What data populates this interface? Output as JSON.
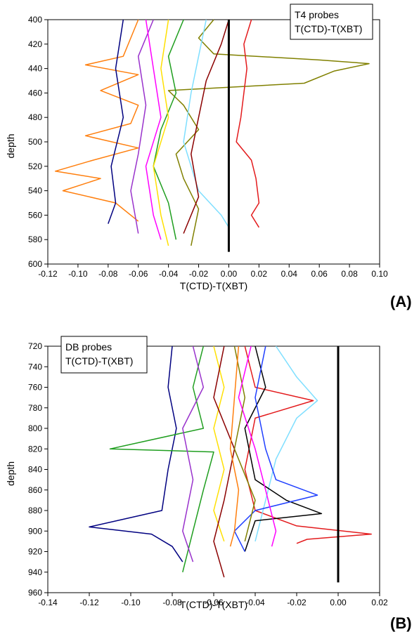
{
  "chart_data": [
    {
      "type": "line",
      "panel_label": "(A)",
      "legend": [
        "T4 probes",
        "T(CTD)-T(XBT)"
      ],
      "legend_position": "top-right",
      "xlabel": "T(CTD)-T(XBT)",
      "ylabel": "depth",
      "xlim": [
        -0.12,
        0.1
      ],
      "ylim": [
        600,
        400
      ],
      "x_ticks": [
        "-0.12",
        "-0.10",
        "-0.08",
        "-0.06",
        "-0.04",
        "-0.02",
        "0.00",
        "0.02",
        "0.04",
        "0.06",
        "0.08",
        "0.10"
      ],
      "y_ticks": [
        "400",
        "420",
        "440",
        "460",
        "480",
        "500",
        "520",
        "540",
        "560",
        "580",
        "600"
      ],
      "reference_line": {
        "x": 0.0,
        "depth_range": [
          400,
          590
        ],
        "color": "#000000"
      },
      "series": [
        {
          "color": "#ff7f0e",
          "points": [
            [
              -0.06,
              400
            ],
            [
              -0.065,
              415
            ],
            [
              -0.07,
              430
            ],
            [
              -0.095,
              437
            ],
            [
              -0.06,
              445
            ],
            [
              -0.085,
              458
            ],
            [
              -0.06,
              470
            ],
            [
              -0.065,
              485
            ],
            [
              -0.095,
              495
            ],
            [
              -0.06,
              505
            ],
            [
              -0.09,
              515
            ],
            [
              -0.115,
              524
            ],
            [
              -0.085,
              530
            ],
            [
              -0.11,
              540
            ],
            [
              -0.075,
              550
            ],
            [
              -0.06,
              565
            ]
          ]
        },
        {
          "color": "#808000",
          "points": [
            [
              -0.01,
              400
            ],
            [
              -0.02,
              415
            ],
            [
              -0.01,
              428
            ],
            [
              0.06,
              433
            ],
            [
              0.093,
              436
            ],
            [
              0.07,
              442
            ],
            [
              0.05,
              452
            ],
            [
              -0.04,
              458
            ],
            [
              -0.03,
              470
            ],
            [
              -0.02,
              490
            ],
            [
              -0.035,
              510
            ],
            [
              -0.03,
              530
            ],
            [
              -0.02,
              555
            ],
            [
              -0.025,
              585
            ]
          ]
        },
        {
          "color": "#e31a1c",
          "points": [
            [
              0.015,
              400
            ],
            [
              0.01,
              420
            ],
            [
              0.012,
              440
            ],
            [
              0.01,
              460
            ],
            [
              0.008,
              480
            ],
            [
              0.005,
              500
            ],
            [
              0.015,
              515
            ],
            [
              0.018,
              530
            ],
            [
              0.02,
              550
            ],
            [
              0.015,
              560
            ],
            [
              0.02,
              570
            ]
          ]
        },
        {
          "color": "#000080",
          "points": [
            [
              -0.07,
              400
            ],
            [
              -0.075,
              440
            ],
            [
              -0.07,
              480
            ],
            [
              -0.078,
              520
            ],
            [
              -0.075,
              550
            ],
            [
              -0.08,
              567
            ]
          ]
        },
        {
          "color": "#1f9e1f",
          "points": [
            [
              -0.03,
              400
            ],
            [
              -0.04,
              430
            ],
            [
              -0.035,
              460
            ],
            [
              -0.045,
              490
            ],
            [
              -0.05,
              520
            ],
            [
              -0.04,
              550
            ],
            [
              -0.035,
              580
            ]
          ]
        },
        {
          "color": "#7fdfff",
          "points": [
            [
              -0.015,
              400
            ],
            [
              -0.02,
              430
            ],
            [
              -0.025,
              460
            ],
            [
              -0.03,
              500
            ],
            [
              -0.02,
              540
            ],
            [
              -0.005,
              560
            ],
            [
              0.0,
              570
            ]
          ]
        },
        {
          "color": "#8b0000",
          "points": [
            [
              0.0,
              400
            ],
            [
              -0.005,
              420
            ],
            [
              -0.015,
              450
            ],
            [
              -0.02,
              480
            ],
            [
              -0.025,
              510
            ],
            [
              -0.02,
              545
            ],
            [
              -0.03,
              575
            ]
          ]
        },
        {
          "color": "#9932cc",
          "points": [
            [
              -0.05,
              400
            ],
            [
              -0.06,
              430
            ],
            [
              -0.055,
              470
            ],
            [
              -0.06,
              510
            ],
            [
              -0.065,
              540
            ],
            [
              -0.06,
              575
            ]
          ]
        },
        {
          "color": "#ffe000",
          "points": [
            [
              -0.04,
              400
            ],
            [
              -0.045,
              440
            ],
            [
              -0.04,
              480
            ],
            [
              -0.05,
              520
            ],
            [
              -0.045,
              560
            ],
            [
              -0.04,
              585
            ]
          ]
        },
        {
          "color": "#ff00ff",
          "points": [
            [
              -0.055,
              400
            ],
            [
              -0.05,
              440
            ],
            [
              -0.045,
              480
            ],
            [
              -0.055,
              520
            ],
            [
              -0.05,
              560
            ],
            [
              -0.045,
              580
            ]
          ]
        }
      ]
    },
    {
      "type": "line",
      "panel_label": "(B)",
      "legend": [
        "DB probes",
        "T(CTD)-T(XBT)"
      ],
      "legend_position": "top-left",
      "xlabel": "T(CTD)-T(XBT)",
      "ylabel": "depth",
      "xlim": [
        -0.14,
        0.02
      ],
      "ylim": [
        960,
        720
      ],
      "x_ticks": [
        "-0.14",
        "-0.12",
        "-0.10",
        "-0.08",
        "-0.06",
        "-0.04",
        "-0.02",
        "0.00",
        "0.02"
      ],
      "y_ticks": [
        "720",
        "740",
        "760",
        "780",
        "800",
        "820",
        "840",
        "860",
        "880",
        "900",
        "920",
        "940",
        "960"
      ],
      "reference_line": {
        "x": 0.0,
        "depth_range": [
          720,
          950
        ],
        "color": "#000000"
      },
      "series": [
        {
          "color": "#000080",
          "points": [
            [
              -0.08,
              720
            ],
            [
              -0.082,
              760
            ],
            [
              -0.078,
              800
            ],
            [
              -0.082,
              840
            ],
            [
              -0.085,
              880
            ],
            [
              -0.12,
              896
            ],
            [
              -0.09,
              903
            ],
            [
              -0.08,
              915
            ],
            [
              -0.075,
              930
            ]
          ]
        },
        {
          "color": "#1f9e1f",
          "points": [
            [
              -0.065,
              720
            ],
            [
              -0.07,
              760
            ],
            [
              -0.065,
              800
            ],
            [
              -0.11,
              820
            ],
            [
              -0.06,
              823
            ],
            [
              -0.065,
              860
            ],
            [
              -0.07,
              900
            ],
            [
              -0.075,
              940
            ]
          ]
        },
        {
          "color": "#e31a1c",
          "points": [
            [
              -0.045,
              720
            ],
            [
              -0.04,
              760
            ],
            [
              -0.012,
              773
            ],
            [
              -0.04,
              790
            ],
            [
              -0.045,
              840
            ],
            [
              -0.04,
              880
            ],
            [
              -0.02,
              895
            ],
            [
              0.016,
              903
            ],
            [
              -0.015,
              908
            ],
            [
              -0.02,
              912
            ]
          ]
        },
        {
          "color": "#7fdfff",
          "points": [
            [
              -0.03,
              720
            ],
            [
              -0.02,
              750
            ],
            [
              -0.01,
              773
            ],
            [
              -0.02,
              790
            ],
            [
              -0.03,
              830
            ],
            [
              -0.035,
              870
            ],
            [
              -0.04,
              910
            ]
          ]
        },
        {
          "color": "#000000",
          "points": [
            [
              -0.04,
              720
            ],
            [
              -0.035,
              760
            ],
            [
              -0.045,
              800
            ],
            [
              -0.04,
              850
            ],
            [
              -0.025,
              870
            ],
            [
              -0.008,
              883
            ],
            [
              -0.04,
              890
            ],
            [
              -0.045,
              920
            ]
          ]
        },
        {
          "color": "#1f3fff",
          "points": [
            [
              -0.035,
              720
            ],
            [
              -0.04,
              770
            ],
            [
              -0.035,
              820
            ],
            [
              -0.03,
              850
            ],
            [
              -0.01,
              865
            ],
            [
              -0.04,
              880
            ],
            [
              -0.05,
              900
            ],
            [
              -0.045,
              920
            ]
          ]
        },
        {
          "color": "#9932cc",
          "points": [
            [
              -0.07,
              720
            ],
            [
              -0.065,
              760
            ],
            [
              -0.075,
              800
            ],
            [
              -0.07,
              850
            ],
            [
              -0.075,
              900
            ],
            [
              -0.07,
              930
            ]
          ]
        },
        {
          "color": "#ffe000",
          "points": [
            [
              -0.06,
              720
            ],
            [
              -0.055,
              760
            ],
            [
              -0.06,
              800
            ],
            [
              -0.055,
              840
            ],
            [
              -0.06,
              880
            ],
            [
              -0.055,
              910
            ]
          ]
        },
        {
          "color": "#8b0000",
          "points": [
            [
              -0.055,
              720
            ],
            [
              -0.06,
              770
            ],
            [
              -0.05,
              820
            ],
            [
              -0.055,
              870
            ],
            [
              -0.06,
              910
            ],
            [
              -0.055,
              945
            ]
          ]
        },
        {
          "color": "#808000",
          "points": [
            [
              -0.05,
              720
            ],
            [
              -0.045,
              770
            ],
            [
              -0.05,
              820
            ],
            [
              -0.04,
              870
            ],
            [
              -0.045,
              910
            ]
          ]
        },
        {
          "color": "#ff00ff",
          "points": [
            [
              -0.042,
              720
            ],
            [
              -0.048,
              770
            ],
            [
              -0.04,
              820
            ],
            [
              -0.035,
              860
            ],
            [
              -0.03,
              900
            ],
            [
              -0.032,
              915
            ]
          ]
        },
        {
          "color": "#ff7f0e",
          "points": [
            [
              -0.048,
              720
            ],
            [
              -0.05,
              770
            ],
            [
              -0.052,
              820
            ],
            [
              -0.048,
              860
            ],
            [
              -0.05,
              900
            ],
            [
              -0.052,
              915
            ]
          ]
        }
      ]
    }
  ]
}
